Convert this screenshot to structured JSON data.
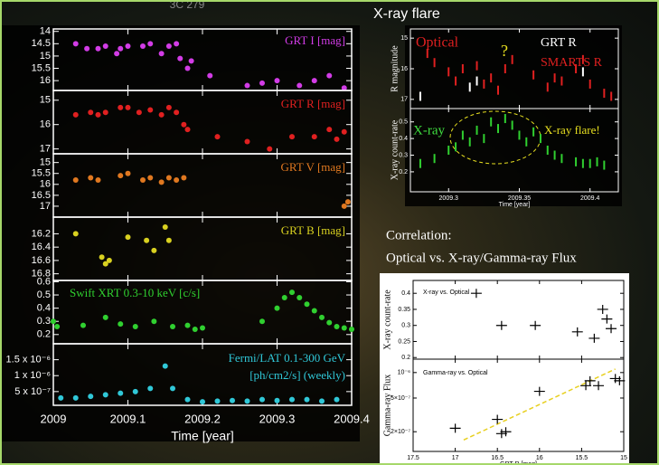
{
  "title": "3C 279",
  "right_title": "X-ray flare",
  "correlation_title": [
    "Correlation:",
    "Optical vs. X-ray/Gamma-ray Flux"
  ],
  "chart_data": [
    {
      "type": "scatter",
      "label": [
        "GRT I [mag]"
      ],
      "marker": "circle",
      "xlim": [
        2009,
        2009.4
      ],
      "ylim": [
        13.9,
        16.4
      ],
      "y_inverted": true,
      "yticks": [
        14,
        14.5,
        15,
        15.5,
        16
      ],
      "series": [
        {
          "color": "#d23ce6",
          "x": [
            2009.03,
            2009.045,
            2009.06,
            2009.07,
            2009.085,
            2009.09,
            2009.1,
            2009.12,
            2009.13,
            2009.145,
            2009.155,
            2009.165,
            2009.17,
            2009.18,
            2009.185,
            2009.21,
            2009.26,
            2009.28,
            2009.3,
            2009.33,
            2009.35,
            2009.37,
            2009.39
          ],
          "values": [
            14.5,
            14.7,
            14.7,
            14.6,
            14.9,
            14.7,
            14.6,
            14.6,
            14.5,
            14.9,
            14.6,
            14.5,
            15.1,
            15.5,
            15.2,
            15.8,
            16.2,
            16.1,
            16.0,
            16.2,
            16.0,
            15.8,
            16.3
          ]
        }
      ]
    },
    {
      "type": "scatter",
      "label": [
        "GRT R [mag]"
      ],
      "marker": "circle",
      "xlim": [
        2009,
        2009.4
      ],
      "ylim": [
        14.6,
        17.2
      ],
      "y_inverted": true,
      "yticks": [
        15,
        16,
        17
      ],
      "series": [
        {
          "color": "#e02020",
          "x": [
            2009.03,
            2009.05,
            2009.06,
            2009.07,
            2009.09,
            2009.1,
            2009.115,
            2009.13,
            2009.145,
            2009.155,
            2009.165,
            2009.175,
            2009.18,
            2009.22,
            2009.26,
            2009.29,
            2009.32,
            2009.35,
            2009.37,
            2009.38,
            2009.39
          ],
          "values": [
            15.6,
            15.5,
            15.6,
            15.5,
            15.3,
            15.3,
            15.5,
            15.4,
            15.6,
            15.3,
            15.5,
            16.0,
            16.2,
            16.5,
            16.7,
            17.0,
            16.5,
            16.5,
            16.2,
            16.6,
            16.3
          ]
        }
      ]
    },
    {
      "type": "scatter",
      "label": [
        "GRT V [mag]"
      ],
      "marker": "circle",
      "xlim": [
        2009,
        2009.4
      ],
      "ylim": [
        14.6,
        17.5
      ],
      "y_inverted": true,
      "yticks": [
        15,
        15.5,
        16,
        16.5,
        17
      ],
      "series": [
        {
          "color": "#e07820",
          "x": [
            2009.03,
            2009.05,
            2009.06,
            2009.09,
            2009.1,
            2009.12,
            2009.13,
            2009.145,
            2009.155,
            2009.165,
            2009.175,
            2009.39,
            2009.395
          ],
          "values": [
            15.8,
            15.7,
            15.8,
            15.6,
            15.5,
            15.8,
            15.7,
            15.9,
            15.7,
            15.8,
            15.7,
            17.0,
            16.8
          ]
        }
      ]
    },
    {
      "type": "scatter",
      "label": [
        "GRT B [mag]"
      ],
      "marker": "circle",
      "xlim": [
        2009,
        2009.4
      ],
      "ylim": [
        15.95,
        16.9
      ],
      "y_inverted": true,
      "yticks": [
        16.2,
        16.4,
        16.6,
        16.8
      ],
      "series": [
        {
          "color": "#d8d020",
          "x": [
            2009.03,
            2009.065,
            2009.07,
            2009.075,
            2009.1,
            2009.125,
            2009.135,
            2009.15,
            2009.155
          ],
          "values": [
            16.2,
            16.55,
            16.65,
            16.6,
            16.25,
            16.3,
            16.45,
            16.1,
            16.3
          ]
        }
      ]
    },
    {
      "type": "scatter",
      "label": [
        "Swift XRT 0.3-10 keV [c/s]"
      ],
      "marker": "circle",
      "xlim": [
        2009,
        2009.4
      ],
      "ylim": [
        0.13,
        0.61
      ],
      "yticks": [
        0.2,
        0.3,
        0.4,
        0.5,
        0.6
      ],
      "series": [
        {
          "color": "#30d030",
          "x": [
            2009.0,
            2009.005,
            2009.04,
            2009.07,
            2009.09,
            2009.11,
            2009.135,
            2009.16,
            2009.18,
            2009.19,
            2009.2,
            2009.28,
            2009.3,
            2009.31,
            2009.32,
            2009.33,
            2009.34,
            2009.35,
            2009.36,
            2009.37,
            2009.38,
            2009.39,
            2009.4
          ],
          "values": [
            0.3,
            0.26,
            0.27,
            0.33,
            0.28,
            0.26,
            0.3,
            0.26,
            0.27,
            0.24,
            0.25,
            0.3,
            0.4,
            0.48,
            0.52,
            0.48,
            0.43,
            0.38,
            0.33,
            0.29,
            0.26,
            0.25,
            0.24
          ]
        }
      ]
    },
    {
      "type": "scatter",
      "label": [
        "Fermi/LAT 0.1-300 GeV",
        "[ph/cm2/s] (weekly)"
      ],
      "marker": "circle",
      "xlim": [
        2009,
        2009.4
      ],
      "ylim": [
        7e-08,
        2e-06
      ],
      "yticks": [
        {
          "value": 5e-07,
          "label": "5 x 10⁻⁷"
        },
        {
          "value": 1e-06,
          "label": "1 x 10⁻⁶"
        },
        {
          "value": 1.5e-06,
          "label": "1.5 x 10⁻⁶"
        }
      ],
      "xticks": [
        2009,
        2009.1,
        2009.2,
        2009.3,
        2009.4
      ],
      "x_label": "Time [year]",
      "series": [
        {
          "color": "#30c8d8",
          "x": [
            2009.01,
            2009.03,
            2009.05,
            2009.07,
            2009.09,
            2009.11,
            2009.13,
            2009.15,
            2009.16,
            2009.18,
            2009.2,
            2009.22,
            2009.24,
            2009.26,
            2009.28,
            2009.3,
            2009.32,
            2009.34,
            2009.36,
            2009.38
          ],
          "values": [
            3e-07,
            3e-07,
            3.5e-07,
            4e-07,
            4.5e-07,
            5e-07,
            6e-07,
            1.3e-06,
            6e-07,
            2.5e-07,
            1.8e-07,
            2e-07,
            2.2e-07,
            2e-07,
            2.5e-07,
            2.2e-07,
            2.5e-07,
            2.5e-07,
            2e-07,
            2.5e-07
          ]
        }
      ]
    },
    {
      "type": "scatter",
      "marker": "bar",
      "xlim": [
        2009.273,
        2009.42
      ],
      "ylim": [
        14.7,
        17.3
      ],
      "y_inverted": true,
      "yticks": [
        15,
        16,
        17
      ],
      "y_label": "R magnitude",
      "annotations": [
        {
          "text": "Optical",
          "color": "#e02020"
        },
        {
          "text": "?",
          "color": "#e8e020"
        }
      ],
      "series": [
        {
          "name": "GRT R",
          "color": "#ffffff",
          "x": [
            2009.28,
            2009.315,
            2009.32,
            2009.395
          ],
          "values": [
            16.9,
            16.6,
            16.4,
            16.1
          ]
        },
        {
          "name": "SMARTS R",
          "color": "#e02020",
          "x": [
            2009.285,
            2009.29,
            2009.3,
            2009.305,
            2009.31,
            2009.32,
            2009.325,
            2009.33,
            2009.335,
            2009.34,
            2009.345,
            2009.36,
            2009.37,
            2009.375,
            2009.38,
            2009.39,
            2009.395,
            2009.4,
            2009.41,
            2009.415
          ],
          "values": [
            15.5,
            15.8,
            16.1,
            16.4,
            16.0,
            15.9,
            16.5,
            16.3,
            16.7,
            16.0,
            15.7,
            16.2,
            16.6,
            16.3,
            16.4,
            16.0,
            15.7,
            16.5,
            16.8,
            16.9
          ]
        }
      ]
    },
    {
      "type": "scatter",
      "marker": "bar",
      "xlim": [
        2009.273,
        2009.42
      ],
      "ylim": [
        0.08,
        0.58
      ],
      "yticks": [
        0.2,
        0.3,
        0.4,
        0.5
      ],
      "y_label": "X-ray count-rate",
      "xticks": [
        2009.3,
        2009.35,
        2009.4
      ],
      "x_label": "Time [year]",
      "annotations": [
        {
          "text": "X-ray",
          "color": "#40e040"
        },
        {
          "text": "X-ray flare!",
          "color": "#e8e020"
        }
      ],
      "series": [
        {
          "color": "#30d030",
          "x": [
            2009.28,
            2009.29,
            2009.3,
            2009.305,
            2009.31,
            2009.315,
            2009.32,
            2009.325,
            2009.33,
            2009.335,
            2009.34,
            2009.345,
            2009.35,
            2009.355,
            2009.36,
            2009.365,
            2009.37,
            2009.375,
            2009.38,
            2009.39,
            2009.395,
            2009.4,
            2009.405,
            2009.41
          ],
          "values": [
            0.25,
            0.28,
            0.33,
            0.35,
            0.42,
            0.38,
            0.45,
            0.4,
            0.5,
            0.46,
            0.52,
            0.48,
            0.42,
            0.38,
            0.44,
            0.4,
            0.33,
            0.3,
            0.28,
            0.26,
            0.25,
            0.25,
            0.26,
            0.24
          ]
        }
      ]
    },
    {
      "type": "scatter",
      "marker": "cross",
      "xlim": [
        17.5,
        15
      ],
      "ylim": [
        0.195,
        0.44
      ],
      "yticks": [
        0.2,
        0.25,
        0.3,
        0.35,
        0.4
      ],
      "y_label": "X-ray count-rate",
      "annotations": [
        {
          "text": "X-ray vs. Optical",
          "color": "#000000"
        }
      ],
      "series": [
        {
          "color": "#000000",
          "x": [
            16.75,
            16.45,
            16.05,
            15.55,
            15.35,
            15.25,
            15.2,
            15.15
          ],
          "values": [
            0.4,
            0.3,
            0.3,
            0.28,
            0.26,
            0.35,
            0.32,
            0.29
          ]
        }
      ]
    },
    {
      "type": "scatter",
      "marker": "cross",
      "xlim": [
        17.5,
        15
      ],
      "ylim": [
        1.17e-07,
        1.44e-06
      ],
      "log_y": true,
      "yticks": [
        {
          "value": 2e-07,
          "label": "2×10⁻⁷"
        },
        {
          "value": 5e-07,
          "label": "5×10⁻⁷"
        },
        {
          "value": 1e-06,
          "label": "10⁻⁶"
        }
      ],
      "y_label": "Gamma-ray Flux",
      "xticks": [
        17.5,
        17,
        16.5,
        16,
        15.5,
        15
      ],
      "x_label": "GRT R [mag]",
      "annotations": [
        {
          "text": "Gamma-ray vs. Optical",
          "color": "#000000"
        }
      ],
      "fit_line": {
        "x": [
          16.9,
          15.1
        ],
        "y": [
          1.6e-07,
          1.1e-06
        ],
        "color": "#e8d020"
      },
      "series": [
        {
          "color": "#000000",
          "x": [
            17.0,
            16.5,
            16.45,
            16.4,
            16.0,
            15.45,
            15.4,
            15.3,
            15.1,
            15.05
          ],
          "values": [
            2.2e-07,
            2.8e-07,
            1.9e-07,
            2e-07,
            6e-07,
            7e-07,
            8e-07,
            7e-07,
            8.5e-07,
            8e-07
          ]
        }
      ]
    }
  ]
}
